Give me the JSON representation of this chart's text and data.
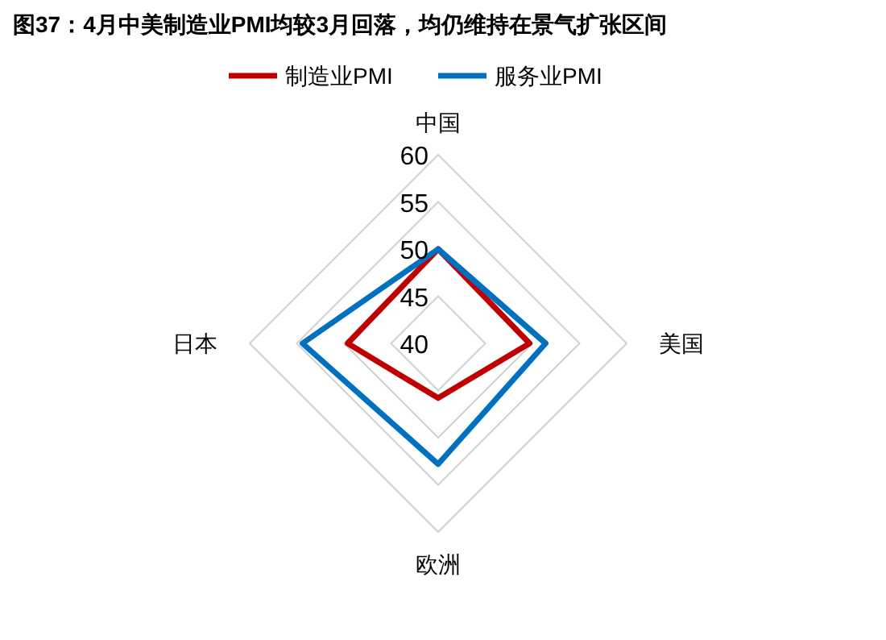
{
  "chart_data": {
    "type": "radar",
    "title": "图37：4月中美制造业PMI均较3月回落，均仍维持在景气扩张区间",
    "categories": [
      "中国",
      "美国",
      "欧洲",
      "日本"
    ],
    "series": [
      {
        "name": "制造业PMI",
        "color": "#c00000",
        "values": [
          50,
          49.7,
          45.8,
          49.6
        ]
      },
      {
        "name": "服务业PMI",
        "color": "#0070c0",
        "values": [
          50,
          51.4,
          52.8,
          54.4
        ]
      }
    ],
    "ylim": [
      40,
      60
    ],
    "yticks": [
      40,
      45,
      50,
      55,
      60
    ],
    "grid": true,
    "legend": "top"
  }
}
